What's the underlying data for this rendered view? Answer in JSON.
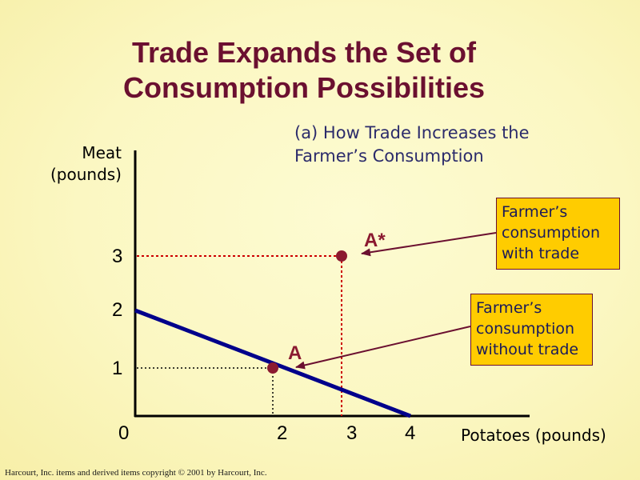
{
  "title_line1": "Trade Expands the Set of",
  "title_line2": "Consumption Possibilities",
  "subtitle_line1": "(a) How Trade Increases the",
  "subtitle_line2": "Farmer’s Consumption",
  "callout_with": [
    "Farmer’s",
    "consumption",
    "with trade"
  ],
  "callout_without": [
    "Farmer’s",
    "consumption",
    "without trade"
  ],
  "footer": "Harcourt, Inc. items and derived items copyright © 2001  by Harcourt, Inc.",
  "colors": {
    "title": "#6b1030",
    "frontier": "#00008b",
    "point": "#8b1a30",
    "guide_red": "#cc0000",
    "callout_bg": "#ffcc00"
  },
  "chart_data": {
    "type": "line",
    "xlabel": "Potatoes (pounds)",
    "ylabel": [
      "Meat",
      "(pounds)"
    ],
    "xlim": [
      0,
      4
    ],
    "ylim": [
      0,
      3
    ],
    "x_ticks": [
      "0",
      "2",
      "3",
      "4"
    ],
    "y_ticks": [
      "1",
      "2",
      "3"
    ],
    "series": [
      {
        "points": [
          {
            "x": 0,
            "y": 2
          },
          {
            "x": 4,
            "y": 0
          }
        ]
      }
    ],
    "points": [
      {
        "label": "A",
        "x": 2,
        "y": 1
      },
      {
        "label": "A*",
        "x": 3,
        "y": 3
      }
    ],
    "grid": false,
    "legend": "none"
  }
}
